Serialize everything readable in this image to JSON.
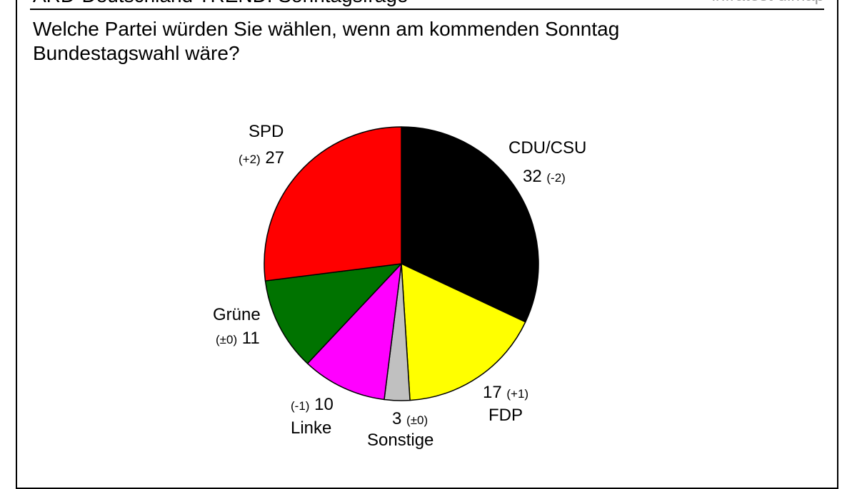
{
  "header": {
    "title": "ARD-Deutschland TREND: Sonntagsfrage",
    "source": "infratest dimap"
  },
  "question": "Welche Partei würden Sie wählen, wenn am kommenden Sonntag Bundestagswahl wäre?",
  "chart_data": {
    "type": "pie",
    "title": "ARD-Deutschland TREND: Sonntagsfrage",
    "start": "12 o'clock",
    "direction": "clockwise",
    "slices": [
      {
        "label": "CDU/CSU",
        "value": 32,
        "change": "(-2)",
        "color": "#000000"
      },
      {
        "label": "FDP",
        "value": 17,
        "change": "(+1)",
        "color": "#ffff00"
      },
      {
        "label": "Sonstige",
        "value": 3,
        "change": "(±0)",
        "color": "#c0c0c0"
      },
      {
        "label": "Linke",
        "value": 10,
        "change": "(-1)",
        "color": "#ff00ff"
      },
      {
        "label": "Grüne",
        "value": 11,
        "change": "(±0)",
        "color": "#007300"
      },
      {
        "label": "SPD",
        "value": 27,
        "change": "(+2)",
        "color": "#ff0000"
      }
    ]
  }
}
